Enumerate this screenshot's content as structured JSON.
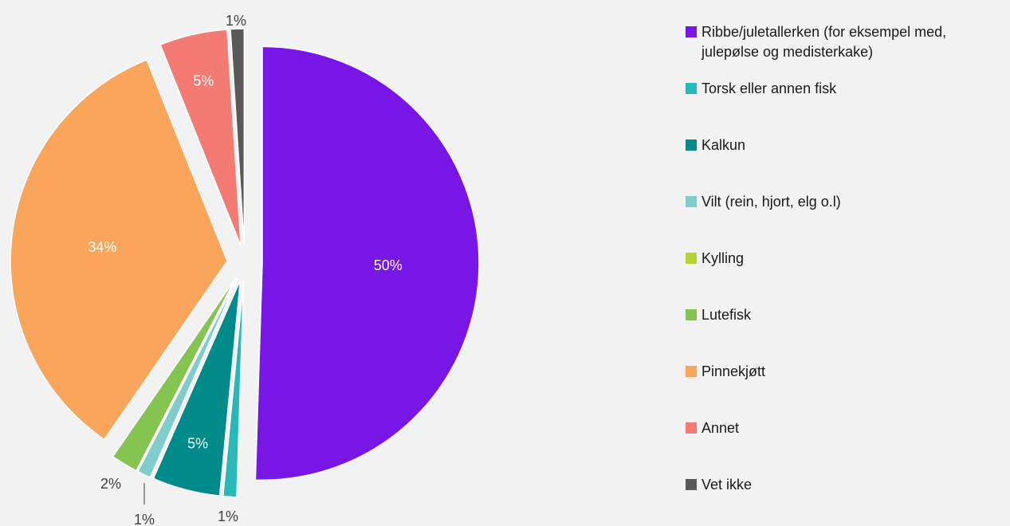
{
  "chart_data": {
    "type": "pie",
    "title": "",
    "legend_position": "right",
    "start_angle_deg": 0,
    "direction": "clockwise",
    "slices": [
      {
        "name": "Ribbe/juletallerken (for eksempel med, julepølse og medisterkake)",
        "value": 50,
        "label": "50%",
        "color": "#7817e5",
        "label_color": "#ffffff",
        "exploded": true
      },
      {
        "name": "Torsk eller annen fisk",
        "value": 1,
        "label": "1%",
        "color": "#2ab7b7",
        "label_color": "#404040",
        "exploded": true
      },
      {
        "name": "Kalkun",
        "value": 5,
        "label": "5%",
        "color": "#008a8a",
        "label_color": "#ffffff",
        "exploded": true
      },
      {
        "name": "Vilt (rein, hjort, elg o.l)",
        "value": 1,
        "label": "1%",
        "color": "#80cccc",
        "label_color": "#404040",
        "exploded": true
      },
      {
        "name": "Kylling",
        "value": 0,
        "label": "",
        "color": "#b5d334",
        "label_color": "#404040",
        "exploded": true
      },
      {
        "name": "Lutefisk",
        "value": 2,
        "label": "2%",
        "color": "#86c451",
        "label_color": "#404040",
        "exploded": true
      },
      {
        "name": "Pinnekjøtt",
        "value": 34,
        "label": "34%",
        "color": "#f9a65c",
        "label_color": "#ffffff",
        "exploded": true
      },
      {
        "name": "Annet",
        "value": 5,
        "label": "5%",
        "color": "#f47b73",
        "label_color": "#ffffff",
        "exploded": true
      },
      {
        "name": "Vet ikke",
        "value": 1,
        "label": "1%",
        "color": "#595959",
        "label_color": "#404040",
        "exploded": true
      }
    ]
  }
}
